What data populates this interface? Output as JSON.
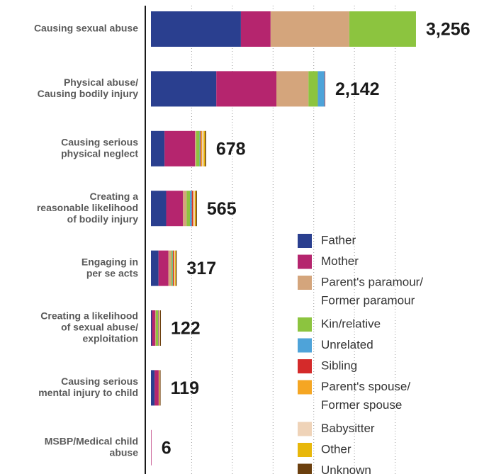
{
  "chart_data": {
    "type": "stacked-bar-horizontal",
    "categories": [
      "Causing sexual abuse",
      "Physical abuse/\nCausing bodily injury",
      "Causing serious\nphysical neglect",
      "Creating a\nreasonable likelihood\nof bodily injury",
      "Engaging in\nper se acts",
      "Creating a likelihood\nof sexual abuse/\nexploitation",
      "Causing serious\nmental injury to child",
      "MSBP/Medical child\nabuse"
    ],
    "series": [
      {
        "name": "Father",
        "color": "#2a3f8f",
        "values": [
          1105,
          803,
          167,
          187,
          93,
          13,
          45,
          0
        ]
      },
      {
        "name": "Mother",
        "color": "#b5256e",
        "values": [
          365,
          738,
          375,
          205,
          121,
          39,
          50,
          6
        ]
      },
      {
        "name": "Parent's paramour/\nFormer paramour",
        "color": "#d4a57c",
        "values": [
          966,
          394,
          14,
          46,
          37,
          9,
          5,
          0
        ]
      },
      {
        "name": "Kin/relative",
        "color": "#8cc43f",
        "values": [
          820,
          115,
          41,
          41,
          14,
          26,
          5,
          0
        ]
      },
      {
        "name": "Unrelated",
        "color": "#4ea3d9",
        "values": [
          0,
          86,
          9,
          23,
          5,
          4,
          0,
          0
        ]
      },
      {
        "name": "Sibling",
        "color": "#d42a2a",
        "values": [
          0,
          6,
          9,
          14,
          9,
          4,
          5,
          0
        ]
      },
      {
        "name": "Parent's spouse/\nFormer spouse",
        "color": "#f5a623",
        "values": [
          0,
          0,
          14,
          9,
          9,
          4,
          0,
          0
        ]
      },
      {
        "name": "Babysitter",
        "color": "#efd3b8",
        "values": [
          0,
          0,
          18,
          14,
          9,
          9,
          0,
          0
        ]
      },
      {
        "name": "Other",
        "color": "#e8b70a",
        "values": [
          0,
          0,
          18,
          14,
          9,
          4,
          4,
          0
        ]
      },
      {
        "name": "Unknown",
        "color": "#6b3f0e",
        "values": [
          0,
          0,
          13,
          12,
          11,
          10,
          5,
          0
        ]
      }
    ],
    "totals": [
      3256,
      2142,
      678,
      565,
      317,
      122,
      119,
      6
    ],
    "total_labels": [
      "3,256",
      "2,142",
      "678",
      "565",
      "317",
      "122",
      "119",
      "6"
    ],
    "xlim": [
      0,
      3500
    ],
    "xticks": [
      500,
      1000,
      1500,
      2000,
      2500,
      3000
    ],
    "grid": true
  }
}
